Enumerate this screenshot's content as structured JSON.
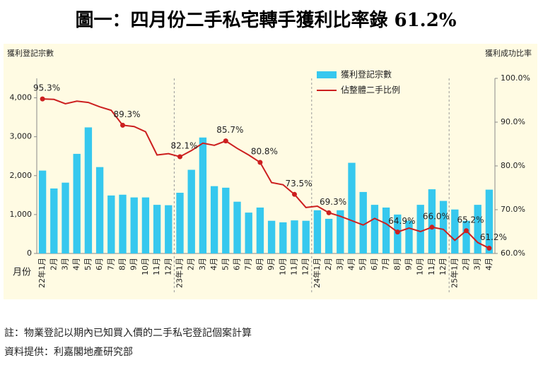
{
  "chart_data": {
    "type": "bar-line",
    "title": "圖一：四月份二手私宅轉手獲利比率錄 61.2%",
    "y_axis_label": "獲利登記宗數",
    "y2_axis_label": "獲利成功比率",
    "x_axis_label": "月份",
    "categories": [
      "22年1月",
      "2月",
      "3月",
      "4月",
      "5月",
      "6月",
      "7月",
      "8月",
      "9月",
      "10月",
      "11月",
      "12月",
      "23年1月",
      "2月",
      "3月",
      "4月",
      "5月",
      "6月",
      "7月",
      "8月",
      "9月",
      "10月",
      "11月",
      "12月",
      "24年1月",
      "2月",
      "3月",
      "4月",
      "5月",
      "6月",
      "7月",
      "8月",
      "9月",
      "10月",
      "11月",
      "12月",
      "25年1月",
      "2月",
      "3月",
      "4月"
    ],
    "series": [
      {
        "name": "獲利登記宗數",
        "type": "bar",
        "color": "#36c8ee",
        "values": [
          2130,
          1670,
          1820,
          2560,
          3240,
          2220,
          1490,
          1510,
          1440,
          1440,
          1250,
          1240,
          1560,
          2150,
          2980,
          1730,
          1690,
          1330,
          1050,
          1180,
          840,
          800,
          850,
          840,
          1110,
          890,
          1110,
          2330,
          1580,
          1250,
          1180,
          1000,
          840,
          1250,
          1650,
          1350,
          1130,
          840,
          1250,
          1640
        ]
      },
      {
        "name": "佔整體二手比例",
        "type": "line",
        "axis": "y2",
        "color": "#cc1f1f",
        "values": [
          95.3,
          95.2,
          94.2,
          94.8,
          94.5,
          93.5,
          92.7,
          89.3,
          89.0,
          87.8,
          82.5,
          82.8,
          82.1,
          83.5,
          85.2,
          84.7,
          85.7,
          84.0,
          82.5,
          80.8,
          76.2,
          75.7,
          73.5,
          70.5,
          70.8,
          69.3,
          68.5,
          67.5,
          66.5,
          68.0,
          66.8,
          64.9,
          65.8,
          65.0,
          66.0,
          65.5,
          63.0,
          65.2,
          62.5,
          61.2
        ],
        "value_labels": [
          "95.3%",
          null,
          null,
          null,
          null,
          null,
          null,
          "89.3%",
          null,
          null,
          null,
          null,
          "82.1%",
          null,
          null,
          null,
          "85.7%",
          null,
          null,
          "80.8%",
          null,
          null,
          "73.5%",
          null,
          null,
          "69.3%",
          null,
          null,
          null,
          null,
          null,
          "64.9%",
          null,
          null,
          "66.0%",
          null,
          null,
          "65.2%",
          null,
          "61.2%"
        ]
      }
    ],
    "ylim": [
      0,
      4500
    ],
    "yticks": [
      0,
      {
        "value": 1000,
        "label": "1,000"
      },
      {
        "value": 2000,
        "label": "2,000"
      },
      {
        "value": 3000,
        "label": "3,000"
      },
      {
        "value": 4000,
        "label": "4,000"
      }
    ],
    "y2lim": [
      60,
      100
    ],
    "y2ticks": [
      {
        "value": 60,
        "label": "60.0%"
      },
      {
        "value": 70,
        "label": "70.0%"
      },
      {
        "value": 80,
        "label": "80.0%"
      },
      {
        "value": 90,
        "label": "90.0%"
      },
      {
        "value": 100,
        "label": "100.0%"
      }
    ],
    "notes": [
      "註：物業登記以期內已知買入價的二手私宅登記個案計算",
      "資料提供：利嘉閣地產研究部"
    ]
  }
}
